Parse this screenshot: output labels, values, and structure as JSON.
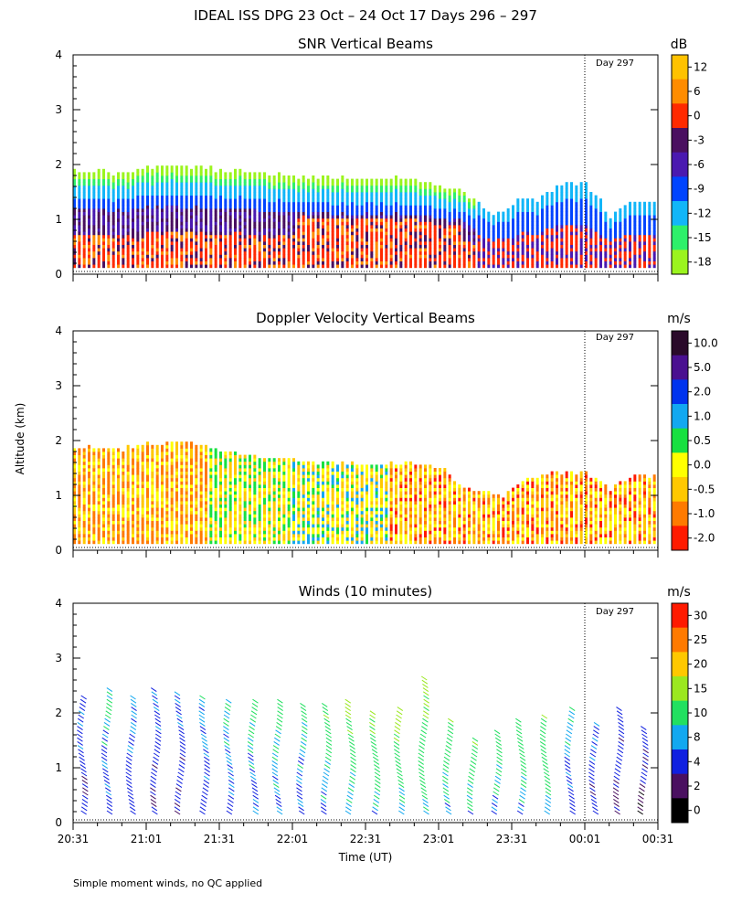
{
  "title": "IDEAL ISS DPG  23 Oct – 24 Oct 17 Days 296 – 297",
  "ylabel": "Altitude (km)",
  "xlabel": "Time (UT)",
  "footnote": "Simple moment winds, no QC applied",
  "chart_data": [
    {
      "id": "snr",
      "type": "heatmap",
      "title": "SNR Vertical Beams",
      "ylabel": "Altitude (km)",
      "xlabel": "Time (UT)",
      "ylim": [
        0,
        4
      ],
      "yticks": [
        "0",
        "1",
        "2",
        "3",
        "4"
      ],
      "xticks": [
        "20:31",
        "21:01",
        "21:31",
        "22:01",
        "22:31",
        "23:01",
        "23:31",
        "00:01",
        "00:31"
      ],
      "xlim_minutes": [
        0,
        240
      ],
      "day_marker": {
        "label": "Day 297",
        "minute": 210
      },
      "colorbar": {
        "unit": "dB",
        "labels": [
          "12",
          "6",
          "0",
          "-3",
          "-6",
          "-9",
          "-12",
          "-15",
          "-18"
        ],
        "colors": [
          "#ffc200",
          "#ff8c00",
          "#ff2a00",
          "#4a1060",
          "#4a19b0",
          "#0044ff",
          "#12b6f8",
          "#2ef06a",
          "#9bf41e"
        ]
      },
      "echo_top_km": [
        [
          0,
          1.85
        ],
        [
          20,
          1.82
        ],
        [
          30,
          1.92
        ],
        [
          45,
          1.95
        ],
        [
          60,
          1.88
        ],
        [
          75,
          1.82
        ],
        [
          90,
          1.75
        ],
        [
          110,
          1.72
        ],
        [
          130,
          1.72
        ],
        [
          150,
          1.62
        ],
        [
          155,
          1.55
        ],
        [
          160,
          1.48
        ],
        [
          168,
          1.15
        ],
        [
          175,
          1.08
        ],
        [
          185,
          1.38
        ],
        [
          190,
          1.35
        ],
        [
          200,
          1.62
        ],
        [
          210,
          1.65
        ],
        [
          220,
          1.05
        ],
        [
          230,
          1.3
        ],
        [
          240,
          1.32
        ]
      ]
    },
    {
      "id": "doppler",
      "type": "heatmap",
      "title": "Doppler Velocity Vertical Beams",
      "ylabel": "Altitude (km)",
      "xlabel": "Time (UT)",
      "ylim": [
        0,
        4
      ],
      "yticks": [
        "0",
        "1",
        "2",
        "3",
        "4"
      ],
      "xticks": [
        "20:31",
        "21:01",
        "21:31",
        "22:01",
        "22:31",
        "23:01",
        "23:31",
        "00:01",
        "00:31"
      ],
      "xlim_minutes": [
        0,
        240
      ],
      "day_marker": {
        "label": "Day 297",
        "minute": 210
      },
      "colorbar": {
        "unit": "m/s",
        "labels": [
          "10.0",
          "5.0",
          "2.0",
          "1.0",
          "0.5",
          "0.0",
          "-0.5",
          "-1.0",
          "-2.0"
        ],
        "colors": [
          "#2a0a2a",
          "#4a1090",
          "#0033ee",
          "#12a8f0",
          "#18e040",
          "#ffff00",
          "#ffc800",
          "#ff7a00",
          "#ff1a00"
        ]
      },
      "echo_top_km": [
        [
          0,
          1.85
        ],
        [
          20,
          1.82
        ],
        [
          30,
          1.95
        ],
        [
          45,
          1.95
        ],
        [
          60,
          1.8
        ],
        [
          75,
          1.68
        ],
        [
          90,
          1.62
        ],
        [
          110,
          1.55
        ],
        [
          130,
          1.55
        ],
        [
          150,
          1.5
        ],
        [
          160,
          1.15
        ],
        [
          175,
          0.95
        ],
        [
          185,
          1.25
        ],
        [
          195,
          1.4
        ],
        [
          210,
          1.38
        ],
        [
          220,
          1.1
        ],
        [
          230,
          1.3
        ],
        [
          240,
          1.35
        ]
      ]
    },
    {
      "id": "winds",
      "type": "scatter",
      "title": "Winds (10 minutes)",
      "ylabel": "Altitude (km)",
      "xlabel": "Time (UT)",
      "ylim": [
        0,
        4
      ],
      "yticks": [
        "0",
        "1",
        "2",
        "3",
        "4"
      ],
      "xticks": [
        "20:31",
        "21:01",
        "21:31",
        "22:01",
        "22:31",
        "23:01",
        "23:31",
        "00:01",
        "00:31"
      ],
      "xlim_minutes": [
        0,
        240
      ],
      "day_marker": {
        "label": "Day 297",
        "minute": 210
      },
      "colorbar": {
        "unit": "m/s",
        "labels": [
          "30",
          "25",
          "20",
          "15",
          "10",
          "8",
          "4",
          "2",
          "0"
        ],
        "colors": [
          "#ff1a00",
          "#ff7a00",
          "#ffc800",
          "#9be820",
          "#22e060",
          "#12a8f0",
          "#1020e0",
          "#4a1060",
          "#000000"
        ]
      },
      "profile_minutes": [
        5,
        15,
        25,
        35,
        45,
        55,
        65,
        75,
        85,
        95,
        105,
        115,
        125,
        135,
        145,
        155,
        165,
        175,
        185,
        195,
        205,
        215,
        225,
        235
      ],
      "profile_top_km": [
        2.3,
        2.4,
        2.3,
        2.4,
        2.35,
        2.3,
        2.2,
        2.2,
        2.25,
        2.15,
        2.15,
        2.2,
        2.0,
        2.05,
        2.6,
        1.85,
        1.55,
        1.65,
        1.9,
        1.95,
        2.05,
        1.8,
        2.1,
        1.7
      ],
      "profile_speed_ms": [
        6,
        8,
        7,
        6,
        6,
        7,
        8,
        9,
        10,
        9,
        11,
        12,
        12,
        12,
        13,
        11,
        12,
        10,
        11,
        12,
        9,
        6,
        5,
        4
      ]
    }
  ]
}
